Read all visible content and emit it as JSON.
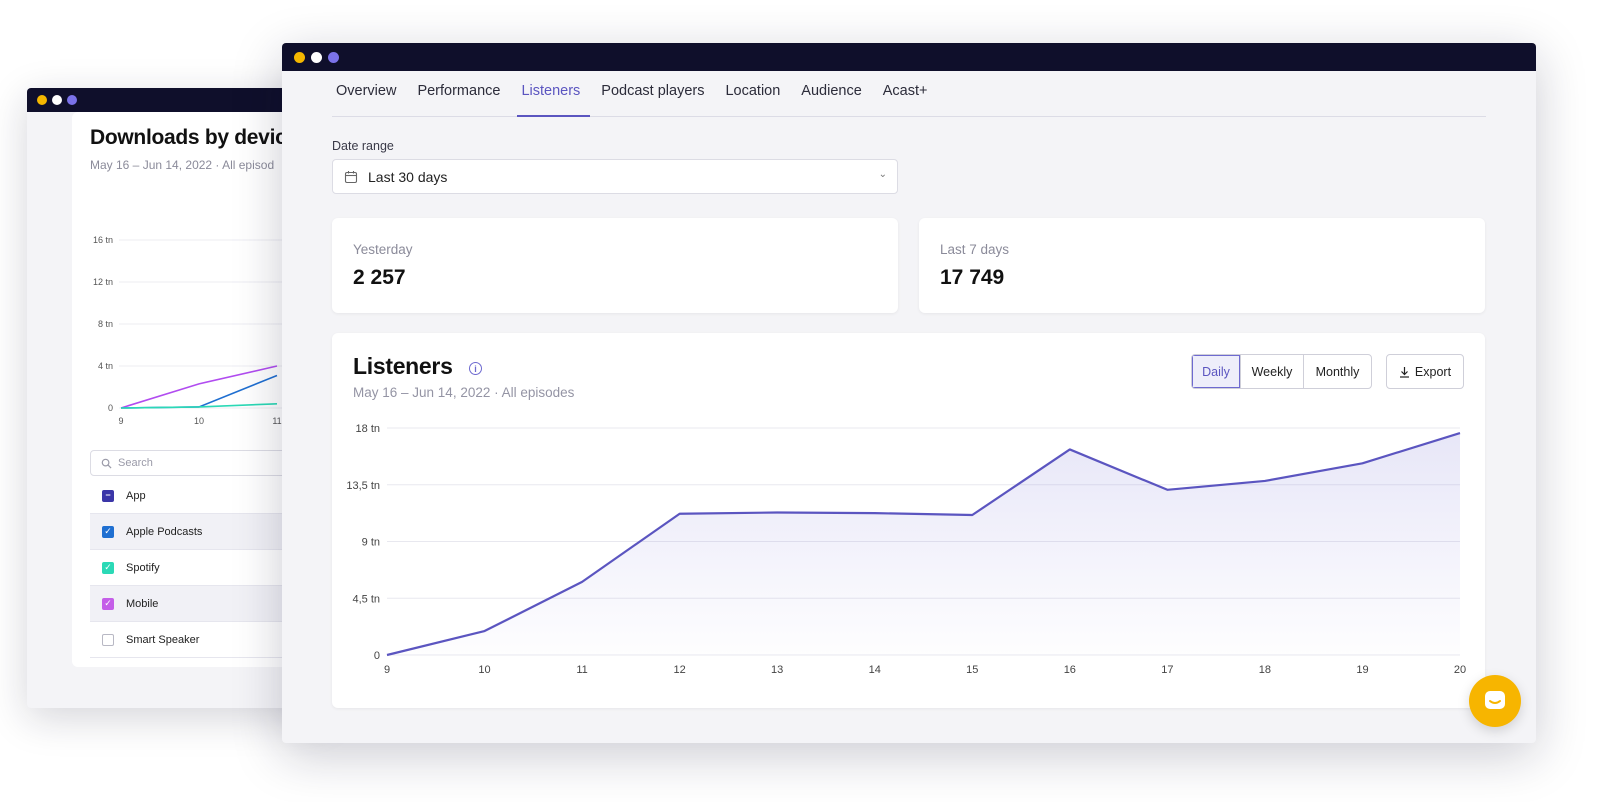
{
  "back_window": {
    "title": "Downloads by devic",
    "subtitle": "May 16 – Jun 14, 2022 · All episod",
    "chart_data": {
      "type": "line",
      "x": [
        9,
        10,
        11
      ],
      "y_ticks": [
        "16 tn",
        "12 tn",
        "8 tn",
        "4 tn",
        "0"
      ],
      "x_ticks": [
        "9",
        "10",
        "11"
      ],
      "ylim": [
        0,
        16
      ],
      "series": [
        {
          "values": [
            0,
            2.3,
            4
          ],
          "color": "#b14cf0"
        },
        {
          "values": [
            0,
            0.1,
            3.1
          ],
          "color": "#1f6fd1"
        },
        {
          "values": [
            0,
            0.1,
            0.4
          ],
          "color": "#2bd9b6"
        }
      ]
    },
    "search_placeholder": "Search",
    "devices": [
      {
        "label": "App",
        "state": "partial",
        "color": "#3b36a8"
      },
      {
        "label": "Apple Podcasts",
        "state": "checked",
        "color": "#1f6fd1"
      },
      {
        "label": "Spotify",
        "state": "checked",
        "color": "#2bd9b6"
      },
      {
        "label": "Mobile",
        "state": "checked",
        "color": "#c45ee8"
      },
      {
        "label": "Smart Speaker",
        "state": "unchecked",
        "color": "#ffffff"
      }
    ]
  },
  "tabs": [
    {
      "label": "Overview",
      "active": false
    },
    {
      "label": "Performance",
      "active": false
    },
    {
      "label": "Listeners",
      "active": true
    },
    {
      "label": "Podcast players",
      "active": false
    },
    {
      "label": "Location",
      "active": false
    },
    {
      "label": "Audience",
      "active": false
    },
    {
      "label": "Acast+",
      "active": false
    }
  ],
  "date_range": {
    "label": "Date range",
    "value": "Last 30 days"
  },
  "stats": [
    {
      "label": "Yesterday",
      "value": "2 257"
    },
    {
      "label": "Last 7 days",
      "value": "17 749"
    }
  ],
  "listeners_chart": {
    "title": "Listeners",
    "subtitle": "May 16 – Jun 14, 2022 · All episodes",
    "granularity": [
      "Daily",
      "Weekly",
      "Monthly"
    ],
    "active_granularity": "Daily",
    "export_label": "Export",
    "chart_data": {
      "type": "area",
      "x": [
        9,
        10,
        11,
        12,
        13,
        14,
        15,
        16,
        17,
        18,
        19,
        20
      ],
      "x_ticks": [
        "9",
        "10",
        "11",
        "12",
        "13",
        "14",
        "15",
        "16",
        "17",
        "18",
        "19",
        "20"
      ],
      "y_ticks": [
        "18 tn",
        "13,5 tn",
        "9 tn",
        "4,5 tn",
        "0"
      ],
      "ylim": [
        0,
        18
      ],
      "series": [
        {
          "values": [
            0,
            1.9,
            5.8,
            11.2,
            11.3,
            11.25,
            11.1,
            16.3,
            13.1,
            13.8,
            15.2,
            17.6
          ],
          "color": "#5b55c0"
        }
      ],
      "grid": true
    }
  },
  "colors": {
    "accent": "#5b55c0",
    "chat": "#f7b500",
    "titlebar": "#0f0f2b"
  }
}
